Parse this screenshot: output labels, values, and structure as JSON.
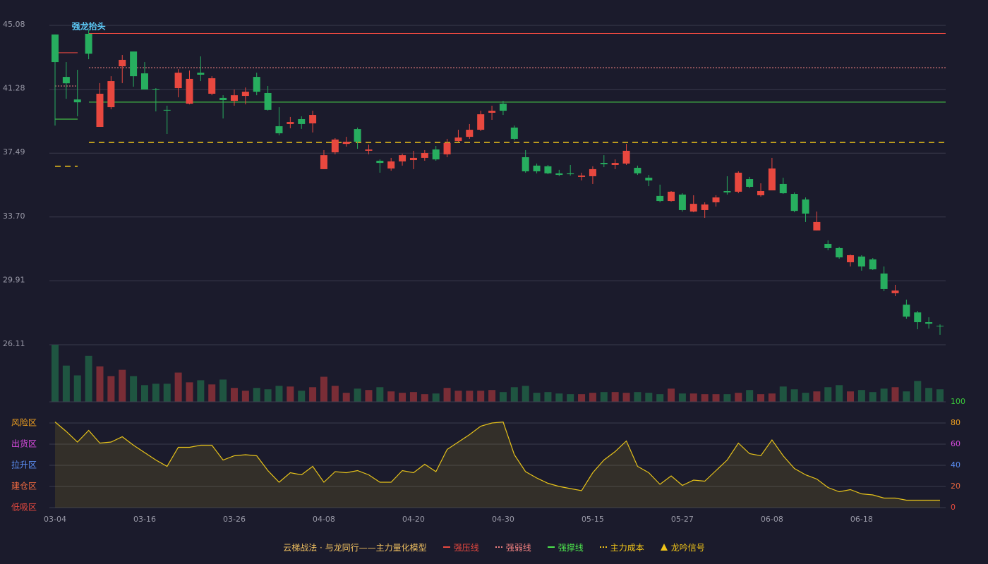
{
  "chart_data": {
    "type": "candlestick",
    "categories": [
      "03-04",
      null,
      null,
      null,
      null,
      null,
      null,
      null,
      "03-16",
      null,
      null,
      null,
      null,
      null,
      null,
      null,
      "03-26",
      null,
      null,
      null,
      null,
      null,
      null,
      null,
      "04-08",
      null,
      null,
      null,
      null,
      null,
      null,
      null,
      "04-20",
      null,
      null,
      null,
      null,
      null,
      null,
      null,
      "04-30",
      null,
      null,
      null,
      null,
      null,
      null,
      null,
      "05-15",
      null,
      null,
      null,
      null,
      null,
      null,
      null,
      "05-27",
      null,
      null,
      null,
      null,
      null,
      null,
      null,
      "06-08",
      null,
      null,
      null,
      null,
      null,
      null,
      null,
      "06-18",
      null,
      null,
      null,
      null,
      null,
      null,
      null
    ],
    "open": [
      44.54,
      42.02,
      40.68,
      44.58,
      39.05,
      40.22,
      42.65,
      43.53,
      42.23,
      41.31,
      40.06,
      41.35,
      40.43,
      42.27,
      41.02,
      40.77,
      40.6,
      40.89,
      42.02,
      41.06,
      39.09,
      39.22,
      39.51,
      39.26,
      36.54,
      37.54,
      38.04,
      38.92,
      37.63,
      37.04,
      36.58,
      37.0,
      37.08,
      37.21,
      37.71,
      37.42,
      38.21,
      38.46,
      38.88,
      39.89,
      40.43,
      39.01,
      37.25,
      36.75,
      36.71,
      36.29,
      36.29,
      36.08,
      36.12,
      36.91,
      36.79,
      36.87,
      36.62,
      36.03,
      34.95,
      34.65,
      35.03,
      34.02,
      34.11,
      34.57,
      35.24,
      35.2,
      35.95,
      34.99,
      35.28,
      35.66,
      35.07,
      34.74,
      32.9,
      32.1,
      31.85,
      31.01,
      31.35,
      31.18,
      30.34,
      29.17,
      28.49,
      28.03,
      27.45,
      27.24
    ],
    "close": [
      42.9,
      41.64,
      40.51,
      43.4,
      41.02,
      41.77,
      43.03,
      42.06,
      41.27,
      41.27,
      40.02,
      42.27,
      41.9,
      42.15,
      41.94,
      40.64,
      40.93,
      41.14,
      41.14,
      40.06,
      38.67,
      39.34,
      39.22,
      39.76,
      37.37,
      38.3,
      38.17,
      38.17,
      37.71,
      36.91,
      37.0,
      37.37,
      37.21,
      37.5,
      37.12,
      38.09,
      38.42,
      38.88,
      39.8,
      40.01,
      40.01,
      38.34,
      36.41,
      36.41,
      36.29,
      36.2,
      36.24,
      36.16,
      36.54,
      36.83,
      36.91,
      37.63,
      36.29,
      35.87,
      34.65,
      35.2,
      34.11,
      34.48,
      34.44,
      34.86,
      35.16,
      36.33,
      35.49,
      35.24,
      36.58,
      35.11,
      34.06,
      33.9,
      33.4,
      31.85,
      31.3,
      31.43,
      30.76,
      30.59,
      29.42,
      29.33,
      27.78,
      27.45,
      27.36,
      27.2
    ],
    "high": [
      44.54,
      42.9,
      42.44,
      44.83,
      41.65,
      42.06,
      43.32,
      43.53,
      42.9,
      41.35,
      40.31,
      42.48,
      42.4,
      43.24,
      42.06,
      40.93,
      41.27,
      41.39,
      42.27,
      41.48,
      40.22,
      39.64,
      39.68,
      40.01,
      37.67,
      38.38,
      38.46,
      39.01,
      38.0,
      37.12,
      37.21,
      37.46,
      37.63,
      37.67,
      37.92,
      38.34,
      38.88,
      39.22,
      40.01,
      40.31,
      40.6,
      39.13,
      37.67,
      36.87,
      36.79,
      36.5,
      36.79,
      36.33,
      36.71,
      37.37,
      37.12,
      38.04,
      36.75,
      36.2,
      35.62,
      35.24,
      35.11,
      34.99,
      34.57,
      34.99,
      36.12,
      36.41,
      36.08,
      35.7,
      37.21,
      36.03,
      35.16,
      34.86,
      34.02,
      32.31,
      31.93,
      31.47,
      31.43,
      31.26,
      30.76,
      29.67,
      28.79,
      28.12,
      27.74,
      27.32
    ],
    "low": [
      39.13,
      40.72,
      39.68,
      43.07,
      39.05,
      40.1,
      41.65,
      41.44,
      41.27,
      39.97,
      38.63,
      40.81,
      40.39,
      41.77,
      40.93,
      39.55,
      40.31,
      40.39,
      40.93,
      40.02,
      38.55,
      38.97,
      38.93,
      38.72,
      36.54,
      37.42,
      37.88,
      37.75,
      37.42,
      36.33,
      36.45,
      36.75,
      36.54,
      37.04,
      37.04,
      37.25,
      38.17,
      38.34,
      38.8,
      39.47,
      39.76,
      38.25,
      36.33,
      36.29,
      36.24,
      36.12,
      36.16,
      35.87,
      35.66,
      36.66,
      36.54,
      36.79,
      36.2,
      35.53,
      34.57,
      34.61,
      34.02,
      33.98,
      33.65,
      34.32,
      35.03,
      35.11,
      35.41,
      34.91,
      35.28,
      35.07,
      33.98,
      33.4,
      32.9,
      31.72,
      31.22,
      30.76,
      30.51,
      30.55,
      29.29,
      29.0,
      27.66,
      27.03,
      27.07,
      26.7
    ],
    "ylim": [
      26.11,
      45.08
    ],
    "yticks": [
      26.11,
      {
        "value": 29.91,
        "label": "29.91"
      },
      {
        "value": 33.7,
        "label": "33.70"
      },
      37.49,
      41.28,
      45.08
    ],
    "up_color": "#e8483f",
    "down_color": "#27ae5f",
    "levels": [
      {
        "name": "强压线",
        "color": "#e8483f",
        "dash": "",
        "prior": 43.45,
        "current": 44.6
      },
      {
        "name": "强弱线",
        "color": "#f08080",
        "dash": "2 2",
        "prior": 41.48,
        "current": 42.57
      },
      {
        "name": "强撑线",
        "color": "#4ce44c",
        "dash": "",
        "prior": 39.51,
        "current": 40.52
      },
      {
        "name": "主力成本",
        "color": "#f0c419",
        "dash": "8 6",
        "prior": 36.71,
        "current": 38.13
      }
    ],
    "annotation": {
      "index": 3,
      "text": "强龙抬头",
      "color": "#5bc8f5"
    },
    "volume": {
      "up_color": "#7a2d36",
      "down_color": "#1f5541",
      "values": [
        82,
        52,
        38,
        66,
        51,
        37,
        46,
        37,
        24,
        26,
        26,
        42,
        28,
        31,
        25,
        32,
        20,
        16,
        20,
        18,
        23,
        22,
        16,
        21,
        36,
        23,
        13,
        19,
        17,
        21,
        15,
        13,
        14,
        11,
        12,
        20,
        16,
        16,
        16,
        17,
        14,
        21,
        23,
        13,
        14,
        12,
        11,
        11,
        13,
        14,
        14,
        13,
        14,
        13,
        11,
        19,
        12,
        12,
        11,
        11,
        11,
        13,
        17,
        11,
        12,
        22,
        18,
        13,
        15,
        21,
        24,
        15,
        17,
        14,
        19,
        21,
        15,
        30,
        20,
        18
      ]
    },
    "oscillator": {
      "color": "#e6c21a",
      "values": [
        81,
        72,
        62,
        73,
        61,
        62,
        67,
        59,
        52,
        45,
        39,
        57,
        57,
        59,
        59,
        45,
        49,
        50,
        49,
        35,
        24,
        33,
        31,
        39,
        24,
        34,
        33,
        35,
        31,
        24,
        24,
        35,
        33,
        41,
        34,
        55,
        62,
        69,
        77,
        80,
        81,
        50,
        34,
        28,
        23,
        20,
        18,
        16,
        33,
        45,
        53,
        63,
        39,
        33,
        22,
        30,
        21,
        26,
        25,
        35,
        45,
        61,
        51,
        49,
        64,
        49,
        37,
        31,
        27,
        19,
        15,
        17,
        13,
        12,
        9,
        9,
        7,
        7,
        7,
        7
      ],
      "ylim": [
        0,
        100
      ],
      "yticks": [
        {
          "value": 0,
          "color": "#e84a3f"
        },
        {
          "value": 20,
          "color": "#e8673f"
        },
        {
          "value": 40,
          "color": "#5b8ff5"
        },
        {
          "value": 60,
          "color": "#d94be0"
        },
        {
          "value": 80,
          "color": "#f0a020"
        },
        {
          "value": 100,
          "color": "#3ccc3c"
        }
      ],
      "zones": [
        {
          "value": 80,
          "label": "风险区",
          "color": "#f0a020"
        },
        {
          "value": 60,
          "label": "出货区",
          "color": "#d94be0"
        },
        {
          "value": 40,
          "label": "拉升区",
          "color": "#5b8ff5"
        },
        {
          "value": 20,
          "label": "建仓区",
          "color": "#e8673f"
        },
        {
          "value": 0,
          "label": "低吸区",
          "color": "#e84a3f"
        }
      ]
    },
    "legend_title": "云梯战法 · 与龙同行——主力量化模型",
    "signal": {
      "name": "龙吟信号",
      "color": "#f0c419"
    }
  }
}
